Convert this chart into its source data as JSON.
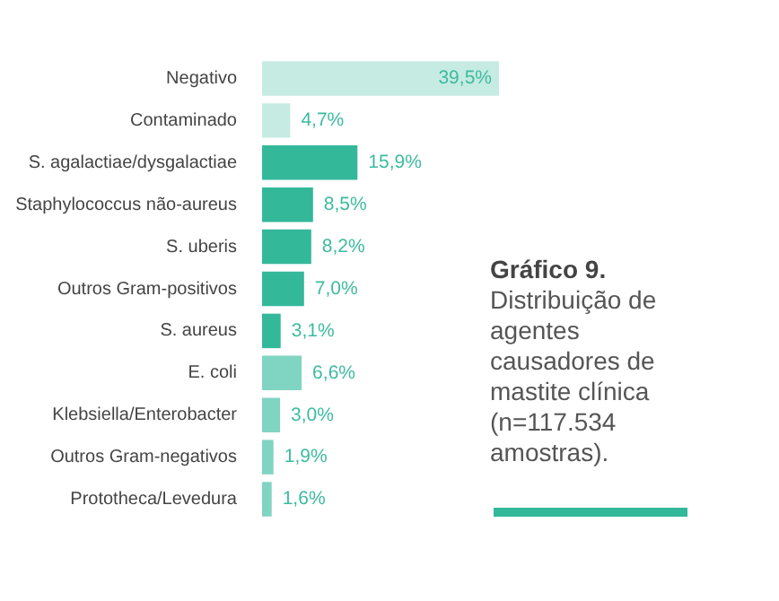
{
  "chart_data": {
    "type": "bar",
    "orientation": "horizontal",
    "title": "Gráfico 9.",
    "subtitle": "Distribuição de agentes causadores de mastite clínica (n=117.534 amostras).",
    "categories": [
      "Negativo",
      "Contaminado",
      "S. agalactiae/dysgalactiae",
      "Staphylococcus não-aureus",
      "S. uberis",
      "Outros Gram-positivos",
      "S. aureus",
      "E. coli",
      "Klebsiella/Enterobacter",
      "Outros Gram-negativos",
      "Prototheca/Levedura"
    ],
    "values": [
      39.5,
      4.7,
      15.9,
      8.5,
      8.2,
      7.0,
      3.1,
      6.6,
      3.0,
      1.9,
      1.6
    ],
    "colors": [
      "#c6ebe2",
      "#c6ebe2",
      "#33b89a",
      "#33b89a",
      "#33b89a",
      "#33b89a",
      "#33b89a",
      "#80d4c2",
      "#80d4c2",
      "#80d4c2",
      "#80d4c2"
    ],
    "value_labels": [
      "39,5%",
      "4,7%",
      "15,9%",
      "8,5%",
      "8,2%",
      "7,0%",
      "3,1%",
      "6,6%",
      "3,0%",
      "1,9%",
      "1,6%"
    ],
    "grid": false,
    "legend": false
  }
}
